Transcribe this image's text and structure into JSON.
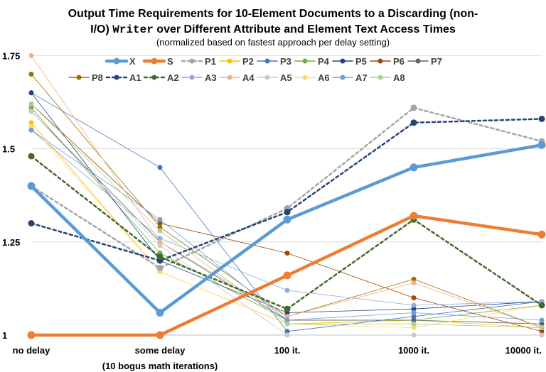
{
  "chart_data": {
    "type": "line",
    "title_line1": "Output Time Requirements for 10-Element Documents to a Discarding (non-",
    "title_line2_pre": "I/O) ",
    "title_line2_code": "Writer",
    "title_line2_post": " over Different Attribute and Element Text Access Times",
    "subtitle": "(normalized based on fastest approach per delay setting)",
    "categories": [
      "no delay",
      "some delay",
      "100 it.",
      "1000 it.",
      "10000 it."
    ],
    "category_sublabel": "(10 bogus math iterations)",
    "ylim": [
      1,
      1.8
    ],
    "yticks": [
      1,
      1.25,
      1.5,
      1.75
    ],
    "ytick_labels": [
      "1",
      "1.25",
      "1.5",
      "1.75"
    ],
    "legend_placement": "top-center",
    "series": [
      {
        "name": "X",
        "color": "#5b9bd5",
        "width": 4.5,
        "dash": "solid",
        "values": [
          1.4,
          1.06,
          1.31,
          1.45,
          1.51
        ]
      },
      {
        "name": "S",
        "color": "#ed7d31",
        "width": 4.5,
        "dash": "solid",
        "values": [
          1.0,
          1.0,
          1.16,
          1.32,
          1.27
        ]
      },
      {
        "name": "P1",
        "color": "#a5a5a5",
        "width": 2.5,
        "dash": "dashed",
        "values": [
          1.4,
          1.18,
          1.34,
          1.61,
          1.52
        ]
      },
      {
        "name": "P2",
        "color": "#ffc000",
        "width": 0.8,
        "dash": "solid",
        "values": [
          1.57,
          1.17,
          1.03,
          1.04,
          1.02
        ]
      },
      {
        "name": "P3",
        "color": "#4472c4",
        "width": 0.8,
        "dash": "solid",
        "values": [
          1.65,
          1.45,
          1.01,
          1.05,
          1.09
        ]
      },
      {
        "name": "P4",
        "color": "#70ad47",
        "width": 0.8,
        "dash": "solid",
        "values": [
          1.61,
          1.22,
          1.04,
          1.04,
          1.08
        ]
      },
      {
        "name": "P5",
        "color": "#264478",
        "width": 0.8,
        "dash": "solid",
        "values": [
          1.65,
          1.2,
          1.06,
          1.07,
          1.09
        ]
      },
      {
        "name": "P6",
        "color": "#9e480e",
        "width": 0.8,
        "dash": "solid",
        "values": [
          1.62,
          1.3,
          1.22,
          1.1,
          1.01
        ]
      },
      {
        "name": "P7",
        "color": "#636363",
        "width": 0.8,
        "dash": "solid",
        "values": [
          1.6,
          1.25,
          1.04,
          1.04,
          1.03
        ]
      },
      {
        "name": "P8",
        "color": "#997300",
        "width": 0.8,
        "dash": "solid",
        "values": [
          1.7,
          1.29,
          1.05,
          1.15,
          1.02
        ]
      },
      {
        "name": "A1",
        "color": "#264478",
        "width": 2.5,
        "dash": "dashed",
        "values": [
          1.3,
          1.2,
          1.33,
          1.57,
          1.58
        ]
      },
      {
        "name": "A2",
        "color": "#43682b",
        "width": 2.5,
        "dash": "dashed",
        "values": [
          1.48,
          1.21,
          1.07,
          1.31,
          1.08
        ]
      },
      {
        "name": "A3",
        "color": "#8faadc",
        "width": 0.8,
        "dash": "solid",
        "values": [
          1.55,
          1.26,
          1.12,
          1.08,
          1.09
        ]
      },
      {
        "name": "A4",
        "color": "#f4b183",
        "width": 0.8,
        "dash": "solid",
        "values": [
          1.75,
          1.25,
          1.05,
          1.14,
          1.02
        ]
      },
      {
        "name": "A5",
        "color": "#c9c9c9",
        "width": 0.8,
        "dash": "solid",
        "values": [
          1.6,
          1.24,
          1.0,
          1.0,
          1.0
        ]
      },
      {
        "name": "A6",
        "color": "#ffd966",
        "width": 0.8,
        "dash": "solid",
        "values": [
          1.56,
          1.17,
          1.03,
          1.02,
          1.08
        ]
      },
      {
        "name": "A7",
        "color": "#6f9fd8",
        "width": 0.8,
        "dash": "solid",
        "values": [
          1.55,
          1.31,
          1.04,
          1.06,
          1.04
        ]
      },
      {
        "name": "A8",
        "color": "#a9d18e",
        "width": 0.8,
        "dash": "solid",
        "values": [
          1.62,
          1.28,
          1.03,
          1.03,
          1.02
        ]
      }
    ]
  }
}
